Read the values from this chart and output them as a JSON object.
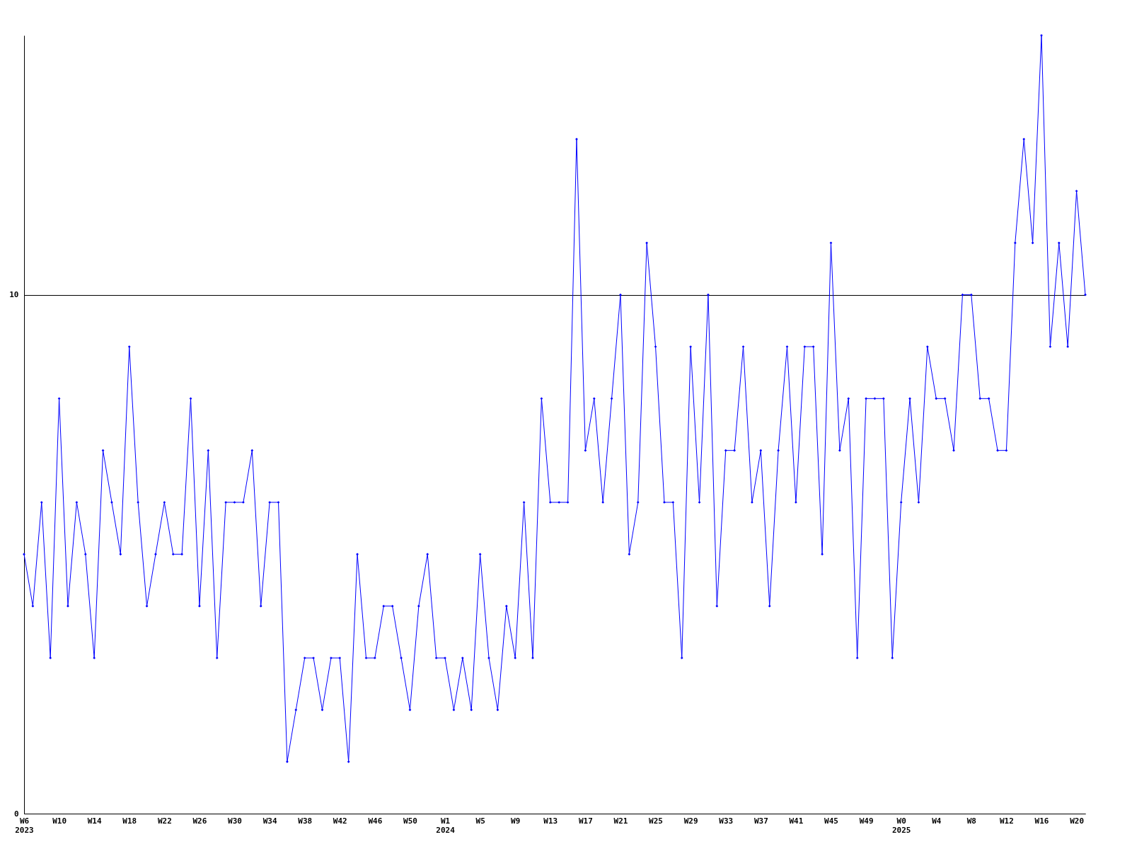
{
  "chart_data": {
    "type": "line",
    "categories": [
      "W6\n2023",
      null,
      null,
      null,
      "W10",
      null,
      null,
      null,
      "W14",
      null,
      null,
      null,
      "W18",
      null,
      null,
      null,
      "W22",
      null,
      null,
      null,
      "W26",
      null,
      null,
      null,
      "W30",
      null,
      null,
      null,
      "W34",
      null,
      null,
      null,
      "W38",
      null,
      null,
      null,
      "W42",
      null,
      null,
      null,
      "W46",
      null,
      null,
      null,
      "W50",
      null,
      null,
      null,
      "W1\n2024",
      null,
      null,
      null,
      "W5",
      null,
      null,
      null,
      "W9",
      null,
      null,
      null,
      "W13",
      null,
      null,
      null,
      "W17",
      null,
      null,
      null,
      "W21",
      null,
      null,
      null,
      "W25",
      null,
      null,
      null,
      "W29",
      null,
      null,
      null,
      "W33",
      null,
      null,
      null,
      "W37",
      null,
      null,
      null,
      "W41",
      null,
      null,
      null,
      "W45",
      null,
      null,
      null,
      "W49",
      null,
      null,
      null,
      "W0\n2025",
      null,
      null,
      null,
      "W4",
      null,
      null,
      null,
      "W8",
      null,
      null,
      null,
      "W12",
      null,
      null,
      null,
      "W16",
      null,
      null,
      null,
      "W20",
      null
    ],
    "series": [
      {
        "color": "#0000ff",
        "values": [
          5,
          4,
          6,
          3,
          8,
          4,
          6,
          5,
          3,
          7,
          6,
          5,
          9,
          6,
          4,
          5,
          6,
          5,
          5,
          8,
          4,
          7,
          3,
          6,
          6,
          6,
          7,
          4,
          6,
          6,
          1,
          2,
          3,
          3,
          2,
          3,
          3,
          1,
          5,
          3,
          3,
          4,
          4,
          3,
          2,
          4,
          5,
          3,
          3,
          2,
          3,
          2,
          5,
          3,
          2,
          4,
          3,
          6,
          3,
          8,
          6,
          6,
          6,
          13,
          7,
          8,
          6,
          8,
          10,
          5,
          6,
          11,
          9,
          6,
          6,
          3,
          9,
          6,
          10,
          4,
          7,
          7,
          9,
          6,
          7,
          4,
          7,
          9,
          6,
          9,
          9,
          5,
          11,
          7,
          8,
          3,
          8,
          8,
          8,
          3,
          6,
          8,
          6,
          9,
          8,
          8,
          7,
          10,
          10,
          8,
          8,
          7,
          7,
          11,
          13,
          11,
          15,
          9,
          11,
          9,
          12,
          10
        ]
      }
    ],
    "ylim": [
      0,
      15
    ],
    "yticks": [
      0,
      10
    ],
    "grid": "y",
    "marker": "diamond",
    "line_style": "solid"
  }
}
